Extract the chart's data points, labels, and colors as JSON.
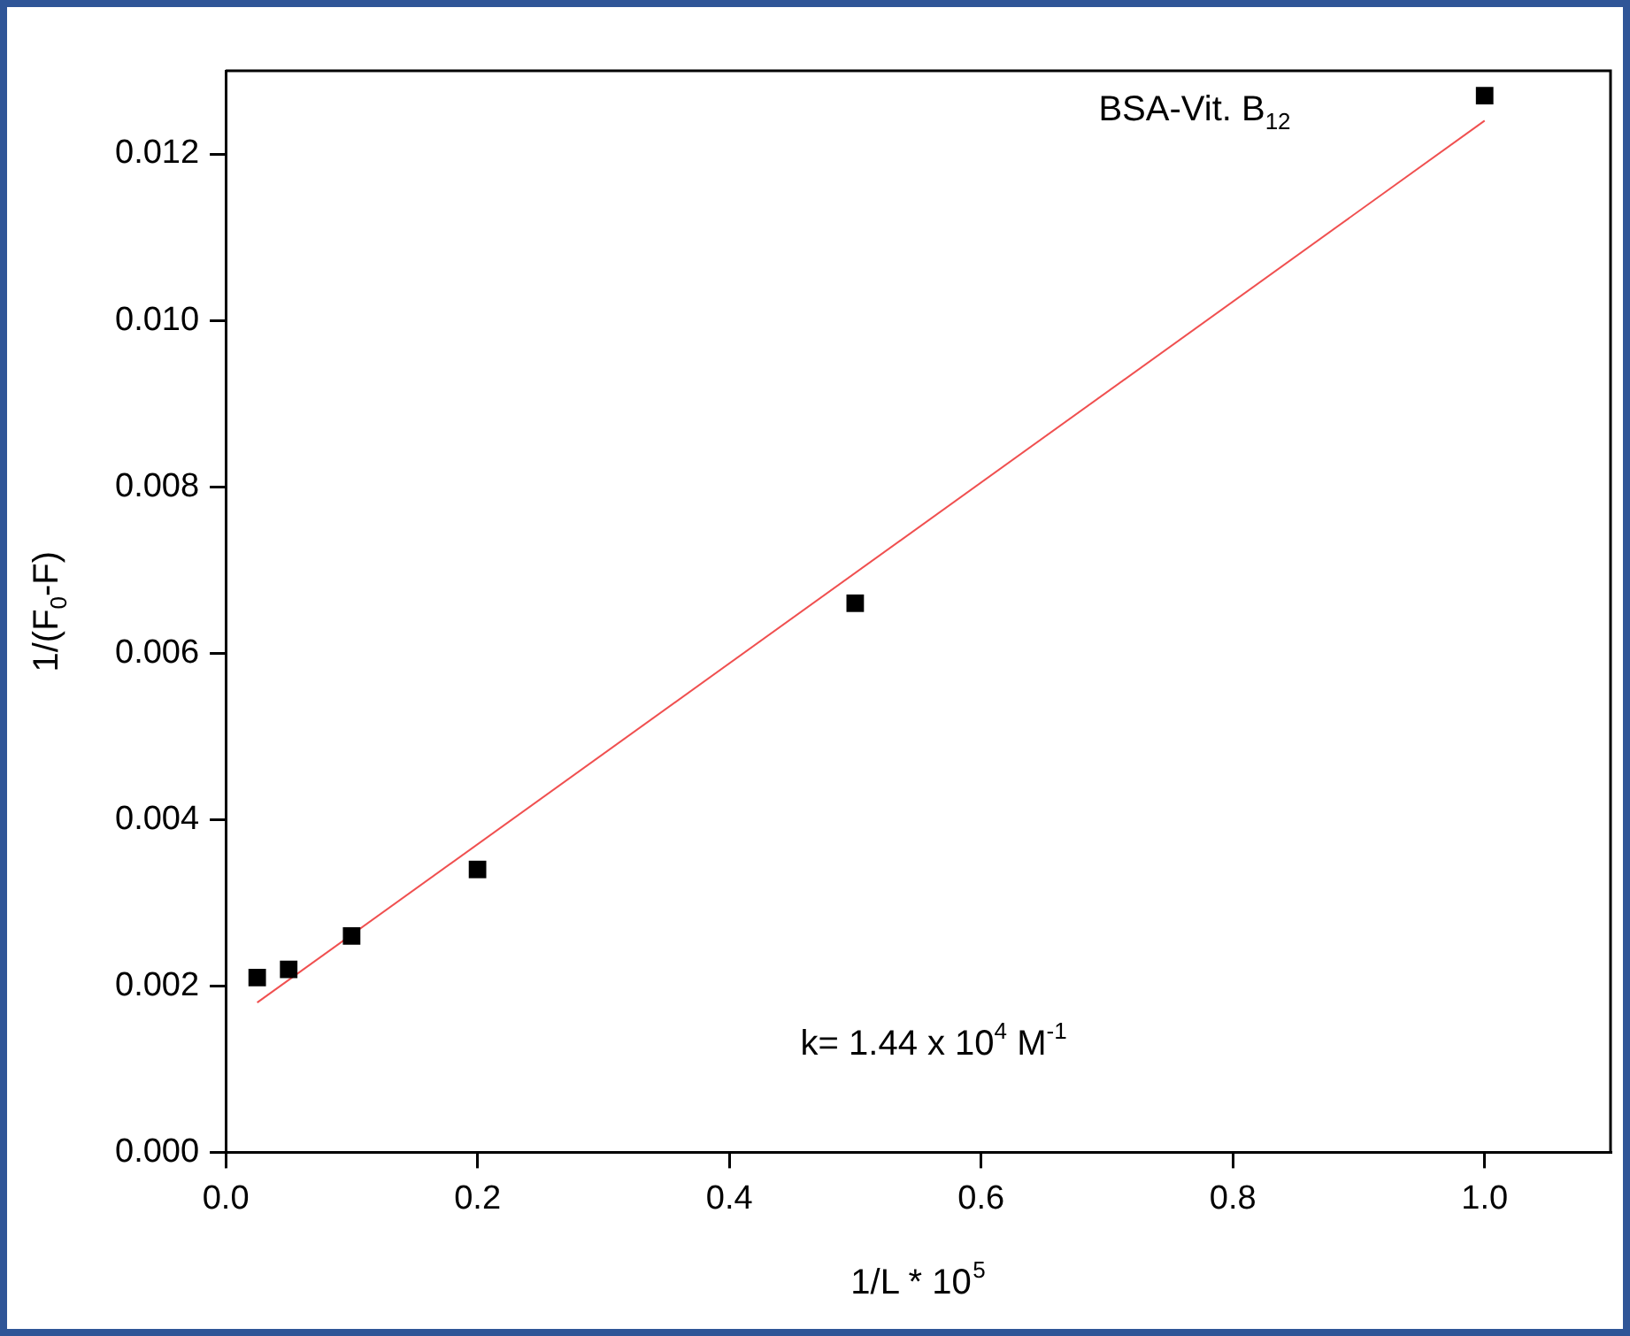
{
  "chart_data": {
    "type": "scatter",
    "xlabel": "1/L * 10$^{5}$",
    "ylabel": "1/(F$_{0}$-F)",
    "annotations": [
      "BSA-Vit. B$_{12}$",
      "k= 1.44 x 10$^{4}$ M$^{-1}$"
    ],
    "xlim": [
      0,
      1.1
    ],
    "xticks": [
      {
        "value": 0,
        "label": "0.0"
      },
      0.2,
      0.4,
      0.6,
      0.8,
      {
        "value": 1,
        "label": "1.0"
      }
    ],
    "ylim": [
      0,
      0.013
    ],
    "yticks": [
      {
        "value": 0,
        "label": "0.000"
      },
      {
        "value": 0.002,
        "label": "0.002"
      },
      {
        "value": 0.004,
        "label": "0.004"
      },
      {
        "value": 0.006,
        "label": "0.006"
      },
      {
        "value": 0.008,
        "label": "0.008"
      },
      {
        "value": 0.01,
        "label": "0.010"
      },
      {
        "value": 0.012,
        "label": "0.012"
      }
    ],
    "grid": false,
    "legend": false,
    "marker": "square",
    "series": [
      {
        "type": "scatter",
        "color": "#000000",
        "x": [
          0.025,
          0.05,
          0.1,
          0.2,
          0.5,
          1.0
        ],
        "values": [
          0.0021,
          0.0022,
          0.0026,
          0.0034,
          0.0066,
          0.0127
        ]
      },
      {
        "type": "line",
        "color": "#f05050",
        "marker": "none",
        "line_style": "solid",
        "x": [
          0.025,
          1.0
        ],
        "values": [
          0.0018,
          0.0124
        ]
      }
    ]
  }
}
